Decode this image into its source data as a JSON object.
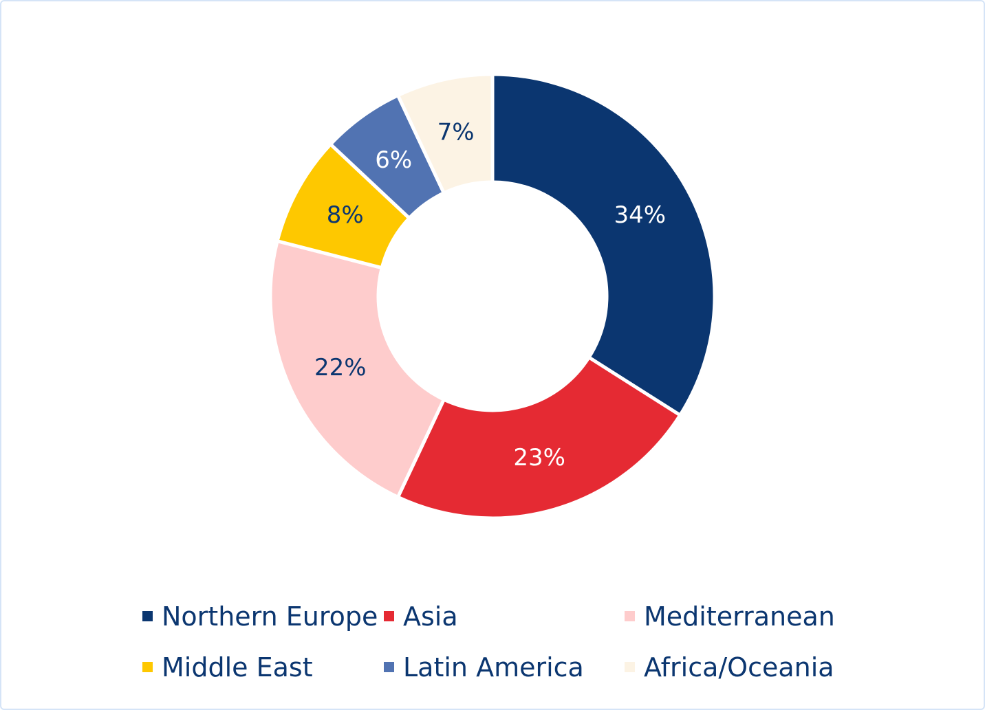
{
  "chart_data": {
    "type": "pie",
    "variant": "donut",
    "title": "",
    "categories": [
      "Northern Europe",
      "Asia",
      "Mediterranean",
      "Middle East",
      "Latin America",
      "Africa/Oceania"
    ],
    "values": [
      34,
      23,
      22,
      8,
      6,
      7
    ],
    "data_labels": [
      "34%",
      "23%",
      "22%",
      "8%",
      "6%",
      "7%"
    ],
    "colors": [
      "#0b3670",
      "#e52a33",
      "#fecccc",
      "#fec800",
      "#5173b2",
      "#fcf3e4"
    ],
    "label_colors": [
      "#ffffff",
      "#ffffff",
      "#0b3670",
      "#0b3670",
      "#ffffff",
      "#0b3670"
    ],
    "legend_text_color": "#0b3670",
    "legend": {
      "position": "bottom",
      "columns": 3
    },
    "start": "top",
    "direction": "clockwise"
  }
}
